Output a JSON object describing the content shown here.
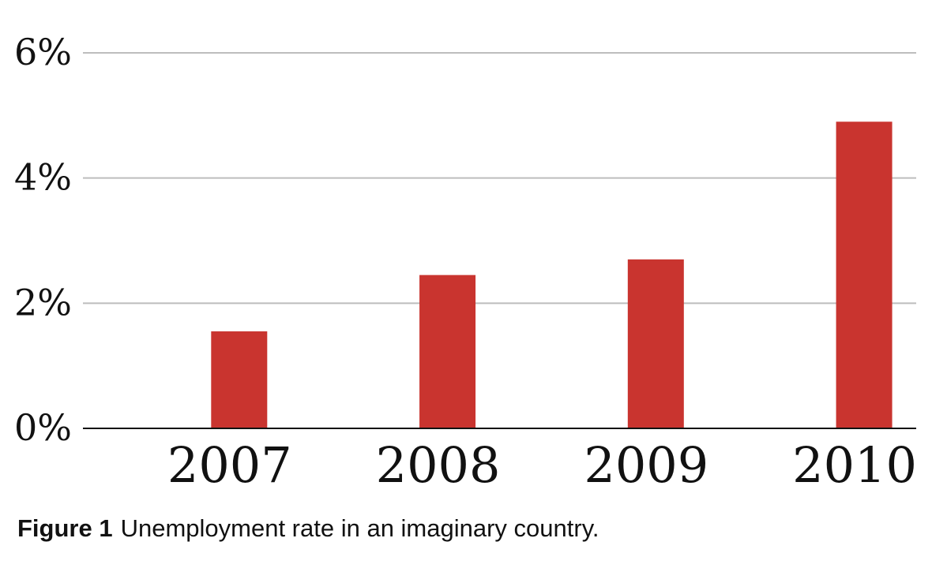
{
  "chart_data": {
    "type": "bar",
    "categories": [
      "2007",
      "2008",
      "2009",
      "2010"
    ],
    "values": [
      1.55,
      2.45,
      2.7,
      4.9
    ],
    "ylim": [
      0,
      6
    ],
    "yticks": [
      0,
      2,
      4,
      6
    ],
    "ytick_labels": [
      "0%",
      "2%",
      "4%",
      "6%"
    ],
    "grid": true,
    "bar_color": "#c9342f",
    "title": "",
    "xlabel": "",
    "ylabel": ""
  },
  "caption": {
    "figure_label": "Figure 1",
    "text": "Unemployment rate in an imaginary country."
  }
}
